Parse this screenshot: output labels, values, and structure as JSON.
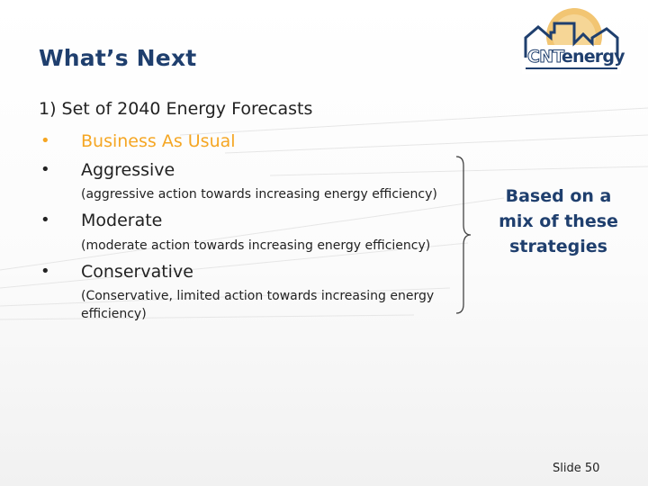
{
  "title": "What’s Next",
  "logo": {
    "brand_part1": "CNT",
    "brand_part2": "energy"
  },
  "list": {
    "heading": "1)  Set of 2040 Energy Forecasts",
    "bullet": "•",
    "items": [
      {
        "label": "Business As Usual",
        "sub": ""
      },
      {
        "label": "Aggressive",
        "sub": "(aggressive action towards increasing energy efficiency)"
      },
      {
        "label": "Moderate",
        "sub": "(moderate action towards increasing energy efficiency)"
      },
      {
        "label": "Conservative",
        "sub": "(Conservative, limited action towards increasing energy efficiency)"
      }
    ]
  },
  "side_note": "Based on a mix of these strategies",
  "footer": {
    "slide_number": "Slide 50"
  },
  "colors": {
    "title": "#1f3f6e",
    "highlight": "#f5a623"
  }
}
